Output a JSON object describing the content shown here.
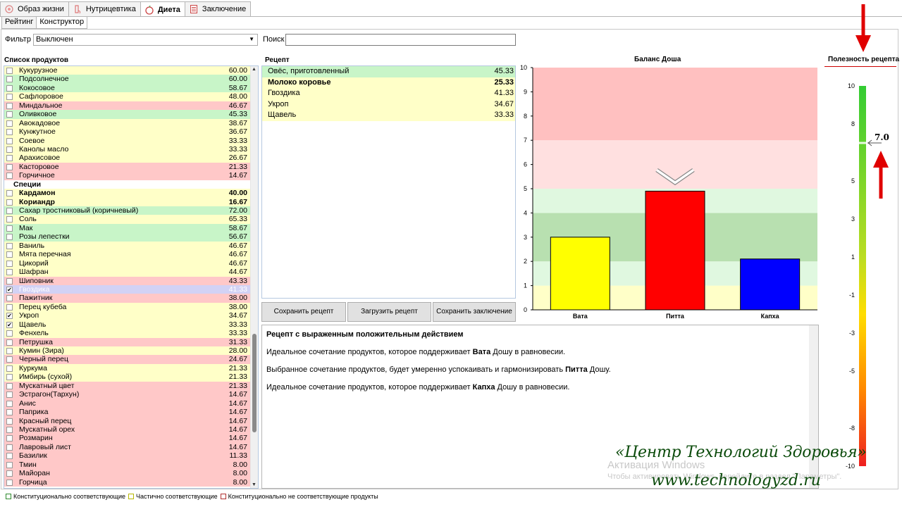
{
  "tabs": [
    {
      "label": "Образ жизни",
      "icon": "lifestyle-icon"
    },
    {
      "label": "Нутрицевтика",
      "icon": "nutraceutics-icon"
    },
    {
      "label": "Диета",
      "icon": "apple-icon",
      "active": true
    },
    {
      "label": "Заключение",
      "icon": "document-icon"
    }
  ],
  "sub_tabs": [
    {
      "label": "Рейтинг"
    },
    {
      "label": "Конструктор",
      "active": true
    }
  ],
  "filter": {
    "label": "Фильтр",
    "value": "Выключен"
  },
  "search": {
    "label": "Поиск",
    "value": ""
  },
  "products": {
    "header": "Список продуктов",
    "items": [
      {
        "name": "Кукурузное",
        "value": "60.00",
        "color": "y"
      },
      {
        "name": "Подсолнечное",
        "value": "60.00",
        "color": "g"
      },
      {
        "name": "Кокосовое",
        "value": "58.67",
        "color": "g"
      },
      {
        "name": "Сафлоровое",
        "value": "48.00",
        "color": "y"
      },
      {
        "name": "Миндальное",
        "value": "46.67",
        "color": "r"
      },
      {
        "name": "Оливковое",
        "value": "45.33",
        "color": "g"
      },
      {
        "name": "Авокадовое",
        "value": "38.67",
        "color": "y"
      },
      {
        "name": "Кунжутное",
        "value": "36.67",
        "color": "y"
      },
      {
        "name": "Соевое",
        "value": "33.33",
        "color": "y"
      },
      {
        "name": "Канолы масло",
        "value": "33.33",
        "color": "y"
      },
      {
        "name": "Арахисовое",
        "value": "26.67",
        "color": "y"
      },
      {
        "name": "Касторовое",
        "value": "21.33",
        "color": "r"
      },
      {
        "name": "Горчичное",
        "value": "14.67",
        "color": "r"
      },
      {
        "name": "Специи",
        "value": "",
        "color": "grp"
      },
      {
        "name": "Кардамон",
        "value": "40.00",
        "color": "y",
        "bold": true
      },
      {
        "name": "Кориандр",
        "value": "16.67",
        "color": "y",
        "bold": true
      },
      {
        "name": "Сахар тростниковый (коричневый)",
        "value": "72.00",
        "color": "g"
      },
      {
        "name": "Соль",
        "value": "65.33",
        "color": "y"
      },
      {
        "name": "Мак",
        "value": "58.67",
        "color": "g"
      },
      {
        "name": "Розы лепестки",
        "value": "56.67",
        "color": "g"
      },
      {
        "name": "Ваниль",
        "value": "46.67",
        "color": "y"
      },
      {
        "name": "Мята перечная",
        "value": "46.67",
        "color": "y"
      },
      {
        "name": "Цикорий",
        "value": "46.67",
        "color": "y"
      },
      {
        "name": "Шафран",
        "value": "44.67",
        "color": "y"
      },
      {
        "name": "Шиповник",
        "value": "43.33",
        "color": "r"
      },
      {
        "name": "Гвоздика",
        "value": "41.33",
        "color": "sel",
        "checked": true
      },
      {
        "name": "Пажитник",
        "value": "38.00",
        "color": "r"
      },
      {
        "name": "Перец кубеба",
        "value": "38.00",
        "color": "y"
      },
      {
        "name": "Укроп",
        "value": "34.67",
        "color": "y",
        "checked": true
      },
      {
        "name": "Щавель",
        "value": "33.33",
        "color": "y",
        "checked": true
      },
      {
        "name": "Фенхель",
        "value": "33.33",
        "color": "y"
      },
      {
        "name": "Петрушка",
        "value": "31.33",
        "color": "r"
      },
      {
        "name": "Кумин (Зира)",
        "value": "28.00",
        "color": "y"
      },
      {
        "name": "Черный перец",
        "value": "24.67",
        "color": "r"
      },
      {
        "name": "Куркума",
        "value": "21.33",
        "color": "y"
      },
      {
        "name": "Имбирь (сухой)",
        "value": "21.33",
        "color": "y"
      },
      {
        "name": "Мускатный цвет",
        "value": "21.33",
        "color": "r"
      },
      {
        "name": "Эстрагон(Тархун)",
        "value": "14.67",
        "color": "r"
      },
      {
        "name": "Анис",
        "value": "14.67",
        "color": "r"
      },
      {
        "name": "Паприка",
        "value": "14.67",
        "color": "r"
      },
      {
        "name": "Красный перец",
        "value": "14.67",
        "color": "r"
      },
      {
        "name": "Мускатный орех",
        "value": "14.67",
        "color": "r"
      },
      {
        "name": "Розмарин",
        "value": "14.67",
        "color": "r"
      },
      {
        "name": "Лавровый лист",
        "value": "14.67",
        "color": "r"
      },
      {
        "name": "Базилик",
        "value": "11.33",
        "color": "r"
      },
      {
        "name": "Тмин",
        "value": "8.00",
        "color": "r"
      },
      {
        "name": "Майоран",
        "value": "8.00",
        "color": "r"
      },
      {
        "name": "Горчица",
        "value": "8.00",
        "color": "r"
      }
    ]
  },
  "recipe": {
    "header": "Рецепт",
    "items": [
      {
        "name": "Овёс, приготовленный",
        "value": "45.33",
        "color": "g"
      },
      {
        "name": "Молоко коровье",
        "value": "25.33",
        "color": "y",
        "bold": true
      },
      {
        "name": "Гвоздика",
        "value": "41.33",
        "color": "y"
      },
      {
        "name": "Укроп",
        "value": "34.67",
        "color": "y"
      },
      {
        "name": "Щавель",
        "value": "33.33",
        "color": "y"
      }
    ],
    "buttons": {
      "save": "Сохранить рецепт",
      "load": "Загрузить рецепт",
      "save_conclusion": "Сохранить заключение"
    }
  },
  "description": {
    "title": "Рецепт с выраженным положительным действием",
    "lines": [
      {
        "pre": "Идеальное сочетание продуктов, которое поддерживает ",
        "bold": "Вата",
        "post": " Дошу в равновесии."
      },
      {
        "pre": "Выбранное сочетание продуктов, будет умеренно успокаивать и гармонизировать ",
        "bold": "Питта",
        "post": " Дошу."
      },
      {
        "pre": "Идеальное сочетание продуктов, которое поддерживает ",
        "bold": "Капха",
        "post": " Дошу в равновесии."
      }
    ]
  },
  "chart_data": {
    "type": "bar",
    "title": "Баланс Доша",
    "categories": [
      "Вата",
      "Питта",
      "Капха"
    ],
    "values": [
      3.0,
      4.9,
      2.1
    ],
    "colors": [
      "#ffff00",
      "#ff0000",
      "#0000ff"
    ],
    "ylim": [
      0,
      10
    ],
    "yticks": [
      0,
      1,
      2,
      3,
      4,
      5,
      6,
      7,
      8,
      9,
      10
    ],
    "bands": [
      {
        "from": 0,
        "to": 1,
        "color": "#ffffc8"
      },
      {
        "from": 1,
        "to": 2,
        "color": "#e0f8e0"
      },
      {
        "from": 2,
        "to": 4,
        "color": "#b8e0b0"
      },
      {
        "from": 4,
        "to": 5,
        "color": "#e0f8e0"
      },
      {
        "from": 5,
        "to": 7,
        "color": "#ffe0e0"
      },
      {
        "from": 7,
        "to": 10,
        "color": "#ffc0c0"
      }
    ],
    "marker_category": "Питта"
  },
  "usefulness": {
    "title": "Полезность рецепта",
    "value": 7.0,
    "value_label": "7.0",
    "ticks": [
      "10",
      "8",
      "5",
      "3",
      "1",
      "-1",
      "-3",
      "-5",
      "-8",
      "-10"
    ],
    "tick_values": [
      10,
      8,
      5,
      3,
      1,
      -1,
      -3,
      -5,
      -8,
      -10
    ],
    "range": [
      -10,
      10
    ]
  },
  "watermark": {
    "line1": "Активация Windows",
    "line2": "Чтобы активировать Windows, перейдите в раздел \"Параметры\"."
  },
  "brand": {
    "line1": "«Центр Технологий Здоровья»",
    "line2": "www.technologyzd.ru"
  },
  "legend": [
    {
      "label": "Конституционально соответствующие",
      "color": "#2e8b2e"
    },
    {
      "label": "Частично соответствующие",
      "color": "#b8b800"
    },
    {
      "label": "Конституционально не соответствующие продукты",
      "color": "#b03030"
    }
  ]
}
